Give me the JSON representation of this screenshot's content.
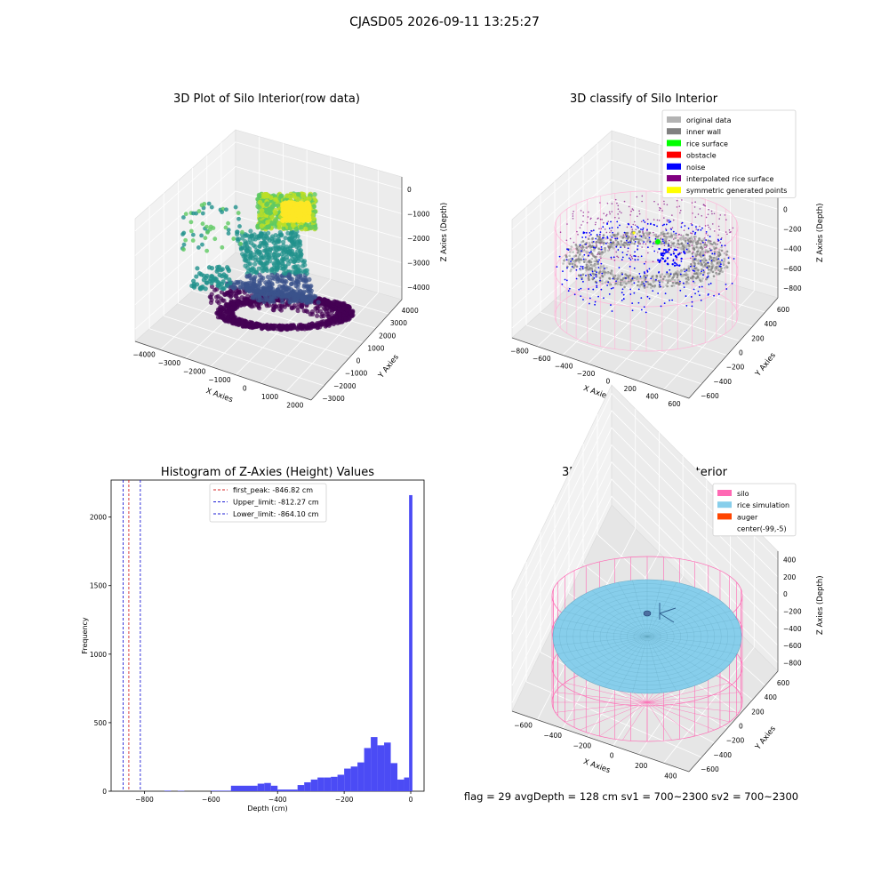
{
  "suptitle": "CJASD05 2026-09-11 13:25:27",
  "colors": {
    "hist_bar": "#4b4bf5",
    "first_peak": "#d62728",
    "limit_line": "#1f1fd6",
    "silo": "#ff69b4",
    "rice": "#87ceeb",
    "auger": "#ff4500",
    "inner_wall": "#808080",
    "original": "#b3b3b3",
    "rice_surface": "#00ff00",
    "obstacle": "#ff0000",
    "noise": "#0000ff",
    "interp": "#800080",
    "symmetric": "#ffff00"
  },
  "footer": "flag = 29  avgDepth = 128 cm  sv1 = 700~2300  sv2 = 700~2300",
  "chart_data": [
    {
      "type": "scatter",
      "title": "3D Plot of Silo Interior(row data)",
      "xlabel": "X Axies",
      "ylabel": "Y Axies",
      "zlabel": "Z Axies (Depth)",
      "x_ticks": [
        "−4000",
        "−3000",
        "−2000",
        "−1000",
        "0",
        "1000",
        "2000"
      ],
      "y_ticks": [
        "−3000",
        "−2000",
        "−1000",
        "0",
        "1000",
        "2000",
        "3000",
        "4000"
      ],
      "z_ticks": [
        "0",
        "−1000",
        "−2000",
        "−3000",
        "−4000"
      ],
      "colormap": "viridis"
    },
    {
      "type": "scatter",
      "title": "3D classify of Silo Interior",
      "xlabel": "X Axies",
      "ylabel": "Y Axies",
      "zlabel": "Z Axies (Depth)",
      "x_ticks": [
        "−800",
        "−600",
        "−400",
        "−200",
        "0",
        "200",
        "400",
        "600"
      ],
      "y_ticks": [
        "−600",
        "−400",
        "−200",
        "0",
        "200",
        "400",
        "600"
      ],
      "z_ticks": [
        "200",
        "0",
        "−200",
        "−400",
        "−600",
        "−800"
      ],
      "legend": [
        {
          "label": "original data",
          "color": "#b3b3b3"
        },
        {
          "label": "inner wall",
          "color": "#808080"
        },
        {
          "label": "rice surface",
          "color": "#00ff00"
        },
        {
          "label": "obstacle",
          "color": "#ff0000"
        },
        {
          "label": "noise",
          "color": "#0000ff"
        },
        {
          "label": "interpolated rice surface",
          "color": "#800080"
        },
        {
          "label": "symmetric generated points",
          "color": "#ffff00"
        }
      ],
      "legend_position": "top-right"
    },
    {
      "type": "bar",
      "title": "Histogram of Z-Axies (Height) Values",
      "xlabel": "Depth (cm)",
      "ylabel": "Frequency",
      "xlim": [
        -900,
        40
      ],
      "ylim": [
        0,
        2270
      ],
      "x_ticks": [
        -800,
        -600,
        -400,
        -200,
        0
      ],
      "y_ticks": [
        0,
        500,
        1000,
        1500,
        2000
      ],
      "bins": [
        {
          "x0": -740,
          "x1": -720,
          "count": 4
        },
        {
          "x0": -700,
          "x1": -680,
          "count": 3
        },
        {
          "x0": -600,
          "x1": -540,
          "count": 4
        },
        {
          "x0": -540,
          "x1": -460,
          "count": 40
        },
        {
          "x0": -460,
          "x1": -440,
          "count": 55
        },
        {
          "x0": -440,
          "x1": -420,
          "count": 60
        },
        {
          "x0": -420,
          "x1": -400,
          "count": 40
        },
        {
          "x0": -400,
          "x1": -340,
          "count": 12
        },
        {
          "x0": -340,
          "x1": -320,
          "count": 45
        },
        {
          "x0": -320,
          "x1": -300,
          "count": 65
        },
        {
          "x0": -300,
          "x1": -280,
          "count": 85
        },
        {
          "x0": -280,
          "x1": -260,
          "count": 100
        },
        {
          "x0": -260,
          "x1": -240,
          "count": 100
        },
        {
          "x0": -240,
          "x1": -220,
          "count": 105
        },
        {
          "x0": -220,
          "x1": -200,
          "count": 120
        },
        {
          "x0": -200,
          "x1": -180,
          "count": 165
        },
        {
          "x0": -180,
          "x1": -160,
          "count": 180
        },
        {
          "x0": -160,
          "x1": -140,
          "count": 210
        },
        {
          "x0": -140,
          "x1": -120,
          "count": 315
        },
        {
          "x0": -120,
          "x1": -100,
          "count": 395
        },
        {
          "x0": -100,
          "x1": -80,
          "count": 335
        },
        {
          "x0": -80,
          "x1": -60,
          "count": 355
        },
        {
          "x0": -60,
          "x1": -40,
          "count": 205
        },
        {
          "x0": -40,
          "x1": -20,
          "count": 85
        },
        {
          "x0": -20,
          "x1": -5,
          "count": 100
        },
        {
          "x0": -5,
          "x1": 5,
          "count": 2160
        }
      ],
      "vlines": [
        {
          "label": "first_peak: -846.82 cm",
          "x": -846.82,
          "color": "#d62728"
        },
        {
          "label": "Upper_limit: -812.27 cm",
          "x": -812.27,
          "color": "#1f1fd6"
        },
        {
          "label": "Lower_limit: -864.10 cm",
          "x": -864.1,
          "color": "#1f1fd6"
        }
      ],
      "legend_position": "top-center"
    },
    {
      "type": "scatter",
      "title": "3D simulation of Silo Interior",
      "xlabel": "X Axies",
      "ylabel": "Y Axies",
      "zlabel": "Z Axies (Depth)",
      "x_ticks": [
        "−600",
        "−400",
        "−200",
        "0",
        "200",
        "400"
      ],
      "y_ticks": [
        "−600",
        "−400",
        "−200",
        "0",
        "200",
        "400",
        "600"
      ],
      "z_ticks": [
        "400",
        "200",
        "0",
        "−200",
        "−400",
        "−600",
        "−800"
      ],
      "legend": [
        {
          "label": "silo",
          "color": "#ff69b4"
        },
        {
          "label": "rice simulation",
          "color": "#87ceeb"
        },
        {
          "label": "auger",
          "color": "#ff4500"
        },
        {
          "label": "center(-99,-5)",
          "color": "#ffffff"
        }
      ],
      "legend_position": "top-right"
    }
  ]
}
